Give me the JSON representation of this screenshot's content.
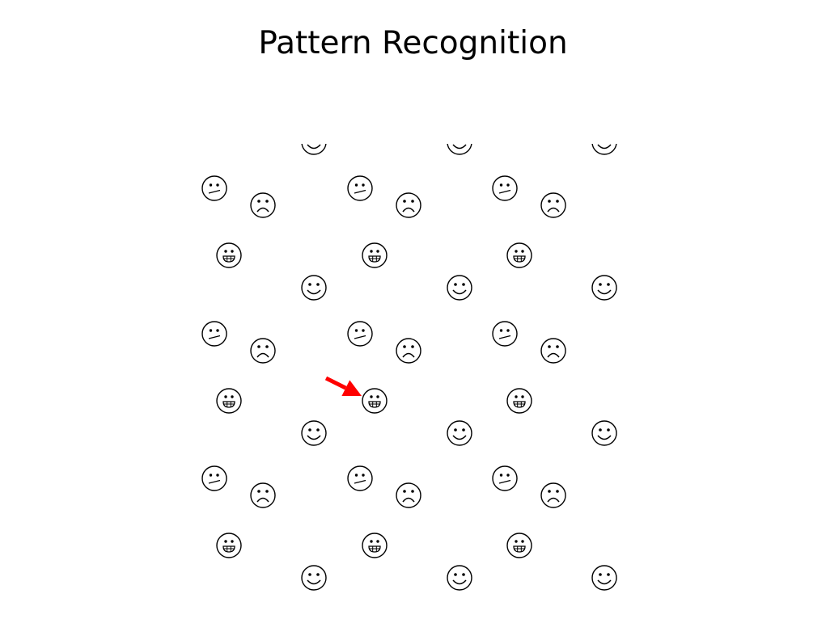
{
  "title": "Pattern Recognition",
  "colors": {
    "background": "#ffffff",
    "ink": "#000000",
    "arrow": "#ff0000"
  },
  "grid": {
    "columns": 3,
    "rows": 3,
    "first_row_clipped_at_top": true,
    "tile_pattern": [
      {
        "position": "upper-left",
        "face": "skeptical-face-icon"
      },
      {
        "position": "upper-right",
        "face": "frowning-face-icon"
      },
      {
        "position": "lower-left",
        "face": "grinning-face-icon"
      },
      {
        "position": "lower-right",
        "face": "smiling-face-icon"
      }
    ]
  },
  "arrow": {
    "icon": "red-arrow-icon",
    "points_to": {
      "row": 2,
      "column": 2,
      "face": "grinning-face-icon"
    }
  }
}
